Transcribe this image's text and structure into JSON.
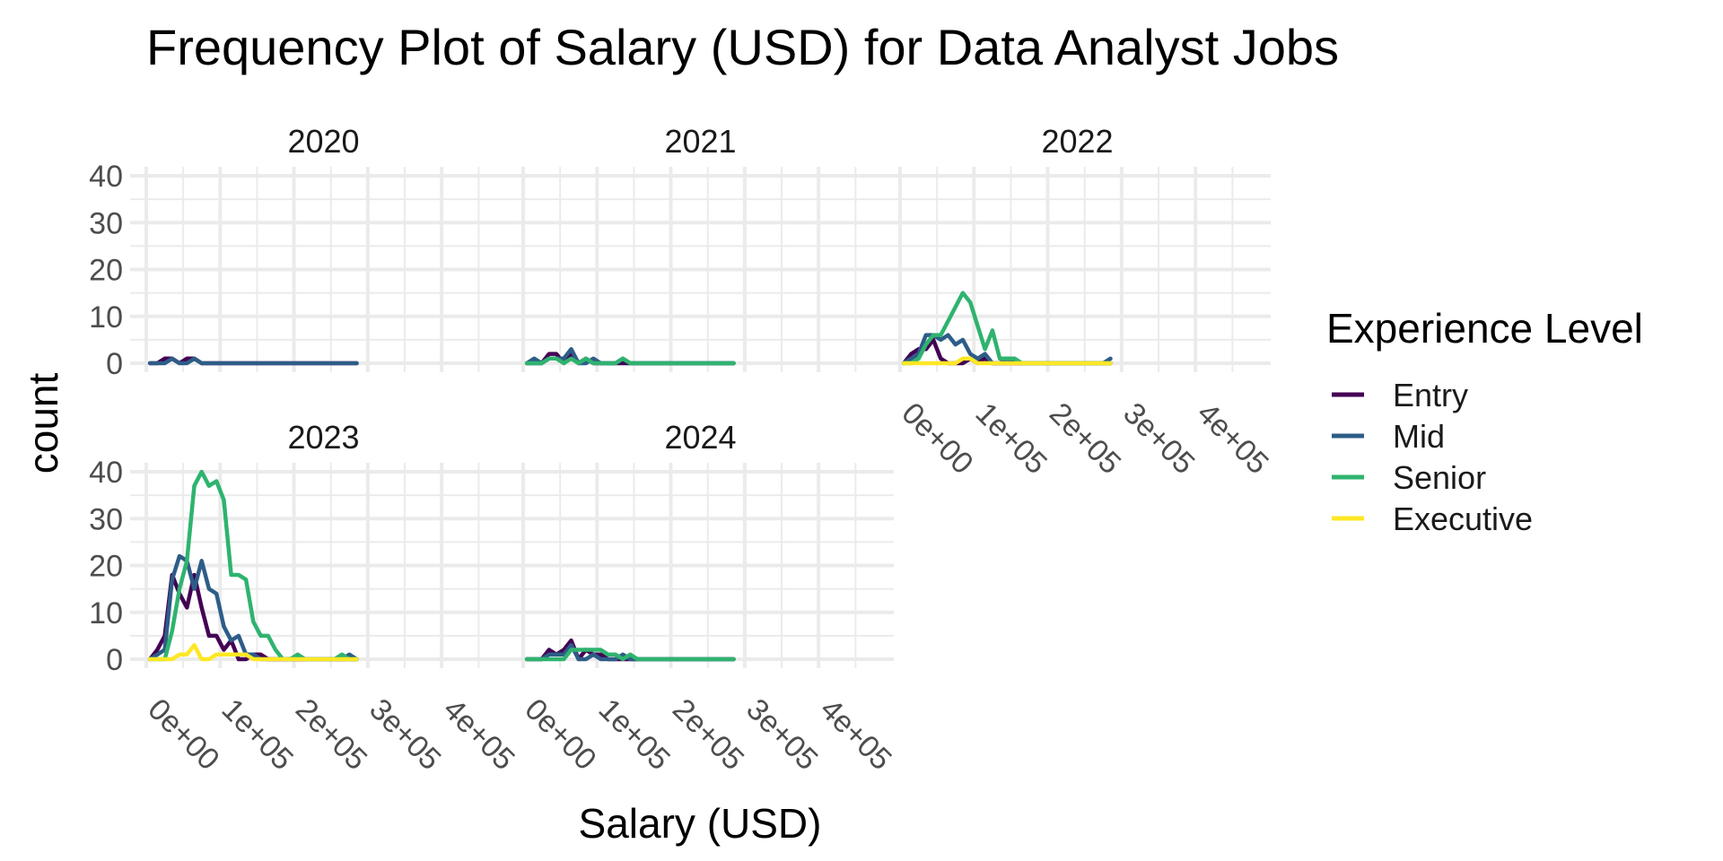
{
  "chart_data": {
    "type": "line",
    "title": "Frequency Plot of Salary (USD) for Data Analyst Jobs",
    "xlabel": "Salary (USD)",
    "ylabel": "count",
    "legend": {
      "title": "Experience Level",
      "position": "right",
      "entries": [
        "Entry",
        "Mid",
        "Senior",
        "Executive"
      ]
    },
    "colors": {
      "Entry": "#440154",
      "Mid": "#2d5d87",
      "Senior": "#2fb36f",
      "Executive": "#fde725"
    },
    "xlim": [
      0,
      480000
    ],
    "ylim": [
      0,
      40
    ],
    "x_ticks": [
      0,
      100000,
      200000,
      300000,
      400000
    ],
    "x_tick_labels": [
      "0e+00",
      "1e+05",
      "2e+05",
      "3e+05",
      "4e+05"
    ],
    "y_ticks": [
      0,
      10,
      20,
      30,
      40
    ],
    "y_tick_labels": [
      "0",
      "10",
      "20",
      "30",
      "40"
    ],
    "grid": true,
    "x_start": 5000,
    "bin_width": 10000,
    "panels": [
      {
        "label": "2020",
        "series": [
          {
            "name": "Entry",
            "values": [
              0,
              0,
              1,
              1,
              0,
              1,
              1,
              0,
              0,
              0,
              0,
              0,
              0,
              0,
              0,
              0,
              0,
              0,
              0,
              0,
              0,
              0,
              0,
              0,
              0,
              0,
              0,
              0,
              0
            ]
          },
          {
            "name": "Mid",
            "values": [
              0,
              0,
              0,
              1,
              0,
              0,
              1,
              0,
              0,
              0,
              0,
              0,
              0,
              0,
              0,
              0,
              0,
              0,
              0,
              0,
              0,
              0,
              0,
              0,
              0,
              0,
              0,
              0,
              0
            ]
          }
        ]
      },
      {
        "label": "2021",
        "series": [
          {
            "name": "Entry",
            "values": [
              0,
              0,
              0,
              2,
              2,
              0,
              2,
              0,
              1,
              0,
              0,
              0,
              0,
              0,
              0,
              0,
              0,
              0,
              0,
              0,
              0,
              0,
              0,
              0,
              0,
              0,
              0,
              0,
              0
            ]
          },
          {
            "name": "Mid",
            "values": [
              0,
              1,
              0,
              1,
              1,
              1,
              3,
              0,
              0,
              1,
              0,
              0,
              0,
              1,
              0,
              0,
              0,
              0,
              0,
              0,
              0,
              0,
              0,
              0,
              0,
              0,
              0,
              0,
              0
            ]
          },
          {
            "name": "Senior",
            "values": [
              0,
              0,
              0,
              1,
              1,
              0,
              1,
              0,
              1,
              0,
              0,
              0,
              0,
              1,
              0,
              0,
              0,
              0,
              0,
              0,
              0,
              0,
              0,
              0,
              0,
              0,
              0,
              0,
              0
            ]
          }
        ]
      },
      {
        "label": "2022",
        "series": [
          {
            "name": "Entry",
            "values": [
              0,
              2,
              3,
              3,
              5,
              1,
              0,
              0,
              0,
              1,
              0,
              1,
              0,
              0,
              0,
              0,
              0,
              0,
              0,
              0,
              0,
              0,
              0,
              0,
              0,
              0,
              0,
              0,
              0
            ]
          },
          {
            "name": "Mid",
            "values": [
              0,
              1,
              2,
              6,
              6,
              5,
              6,
              4,
              5,
              2,
              1,
              2,
              0,
              0,
              1,
              0,
              0,
              0,
              0,
              0,
              0,
              0,
              0,
              0,
              0,
              0,
              0,
              0,
              1
            ]
          },
          {
            "name": "Senior",
            "values": [
              0,
              0,
              1,
              4,
              6,
              6,
              9,
              12,
              15,
              13,
              8,
              3,
              7,
              1,
              1,
              1,
              0,
              0,
              0,
              0,
              0,
              0,
              0,
              0,
              0,
              0,
              0,
              0,
              0
            ]
          },
          {
            "name": "Executive",
            "values": [
              0,
              0,
              0,
              0,
              0,
              0,
              0,
              0,
              1,
              1,
              0,
              0,
              0,
              0,
              0,
              0,
              0,
              0,
              0,
              0,
              0,
              0,
              0,
              0,
              0,
              0,
              0,
              0,
              0
            ]
          }
        ]
      },
      {
        "label": "2023",
        "series": [
          {
            "name": "Entry",
            "values": [
              0,
              2,
              5,
              18,
              14,
              11,
              18,
              11,
              5,
              5,
              2,
              4,
              0,
              0,
              1,
              1,
              0,
              0,
              0,
              0,
              0,
              0,
              0,
              0,
              0,
              0,
              0,
              0,
              0
            ]
          },
          {
            "name": "Mid",
            "values": [
              0,
              1,
              2,
              17,
              22,
              21,
              15,
              21,
              15,
              14,
              7,
              4,
              5,
              1,
              1,
              0,
              0,
              0,
              0,
              0,
              0,
              0,
              0,
              0,
              0,
              0,
              0,
              1,
              0
            ]
          },
          {
            "name": "Senior",
            "values": [
              0,
              0,
              0,
              6,
              15,
              21,
              37,
              40,
              37,
              38,
              34,
              18,
              18,
              17,
              8,
              5,
              5,
              2,
              0,
              0,
              1,
              0,
              0,
              0,
              0,
              0,
              1,
              0,
              0
            ]
          },
          {
            "name": "Executive",
            "values": [
              0,
              0,
              0,
              0,
              1,
              1,
              3,
              0,
              0,
              1,
              1,
              1,
              1,
              1,
              0,
              0,
              0,
              0,
              0,
              0,
              0,
              0,
              0,
              0,
              0,
              0,
              0,
              0,
              0
            ]
          }
        ]
      },
      {
        "label": "2024",
        "series": [
          {
            "name": "Entry",
            "values": [
              0,
              0,
              0,
              2,
              1,
              2,
              4,
              0,
              2,
              1,
              1,
              0,
              0,
              0,
              0,
              0,
              0,
              0,
              0,
              0,
              0,
              0,
              0,
              0,
              0,
              0,
              0,
              0,
              0
            ]
          },
          {
            "name": "Mid",
            "values": [
              0,
              0,
              0,
              1,
              1,
              1,
              3,
              0,
              0,
              1,
              0,
              0,
              0,
              1,
              0,
              0,
              0,
              0,
              0,
              0,
              0,
              0,
              0,
              0,
              0,
              0,
              0,
              0,
              0
            ]
          },
          {
            "name": "Senior",
            "values": [
              0,
              0,
              0,
              0,
              0,
              0,
              2,
              2,
              2,
              2,
              2,
              1,
              1,
              0,
              1,
              0,
              0,
              0,
              0,
              0,
              0,
              0,
              0,
              0,
              0,
              0,
              0,
              0,
              0
            ]
          }
        ]
      }
    ]
  }
}
